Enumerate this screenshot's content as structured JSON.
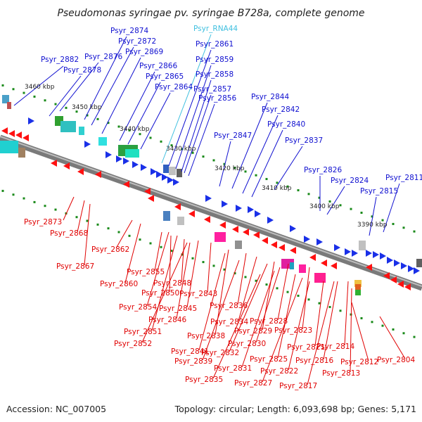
{
  "title": "Pseudomonas syringae pv. syringae B728a, complete genome",
  "footer": {
    "accession": "Accession: NC_007005",
    "summary": "Topology: circular; Length: 6,093,698 bp; Genes: 5,171"
  },
  "colors": {
    "forward_label": "#1010d0",
    "reverse_label": "#e00000",
    "rna_label": "#40c0e0",
    "backbone": "#888888",
    "tick_dot": "#1a8a1a"
  },
  "ticks": [
    "3460 kbp",
    "3450 kbp",
    "3440 kbp",
    "3430 kbp",
    "3420 kbp",
    "3410 kbp",
    "3400 kbp",
    "3390 kbp"
  ],
  "forward_labels": [
    "Psyr_2874",
    "Psyr_2872",
    "Psyr_2869",
    "Psyr_2882",
    "Psyr_2876",
    "Psyr_2878",
    "Psyr_2866",
    "Psyr_2865",
    "Psyr_2864",
    "Psyr_RNA44",
    "Psyr_2861",
    "Psyr_2859",
    "Psyr_2858",
    "Psyr_2857",
    "Psyr_2856",
    "Psyr_2844",
    "Psyr_2842",
    "Psyr_2840",
    "Psyr_2847",
    "Psyr_2837",
    "Psyr_2826",
    "Psyr_2824",
    "Psyr_2815",
    "Psyr_2811"
  ],
  "reverse_labels": [
    "Psyr_2873",
    "Psyr_2868",
    "Psyr_2867",
    "Psyr_2862",
    "Psyr_2860",
    "Psyr_2855",
    "Psyr_2848",
    "Psyr_2850",
    "Psyr_2843",
    "Psyr_2854",
    "Psyr_2845",
    "Psyr_2846",
    "Psyr_2836",
    "Psyr_2851",
    "Psyr_2852",
    "Psyr_2838",
    "Psyr_2834",
    "Psyr_2829",
    "Psyr_2828",
    "Psyr_2823",
    "Psyr_2841",
    "Psyr_2839",
    "Psyr_2832",
    "Psyr_2830",
    "Psyr_2825",
    "Psyr_2821",
    "Psyr_2814",
    "Psyr_2831",
    "Psyr_2822",
    "Psyr_2816",
    "Psyr_2812",
    "Psyr_2804",
    "Psyr_2835",
    "Psyr_2827",
    "Psyr_2817",
    "Psyr_2813"
  ]
}
